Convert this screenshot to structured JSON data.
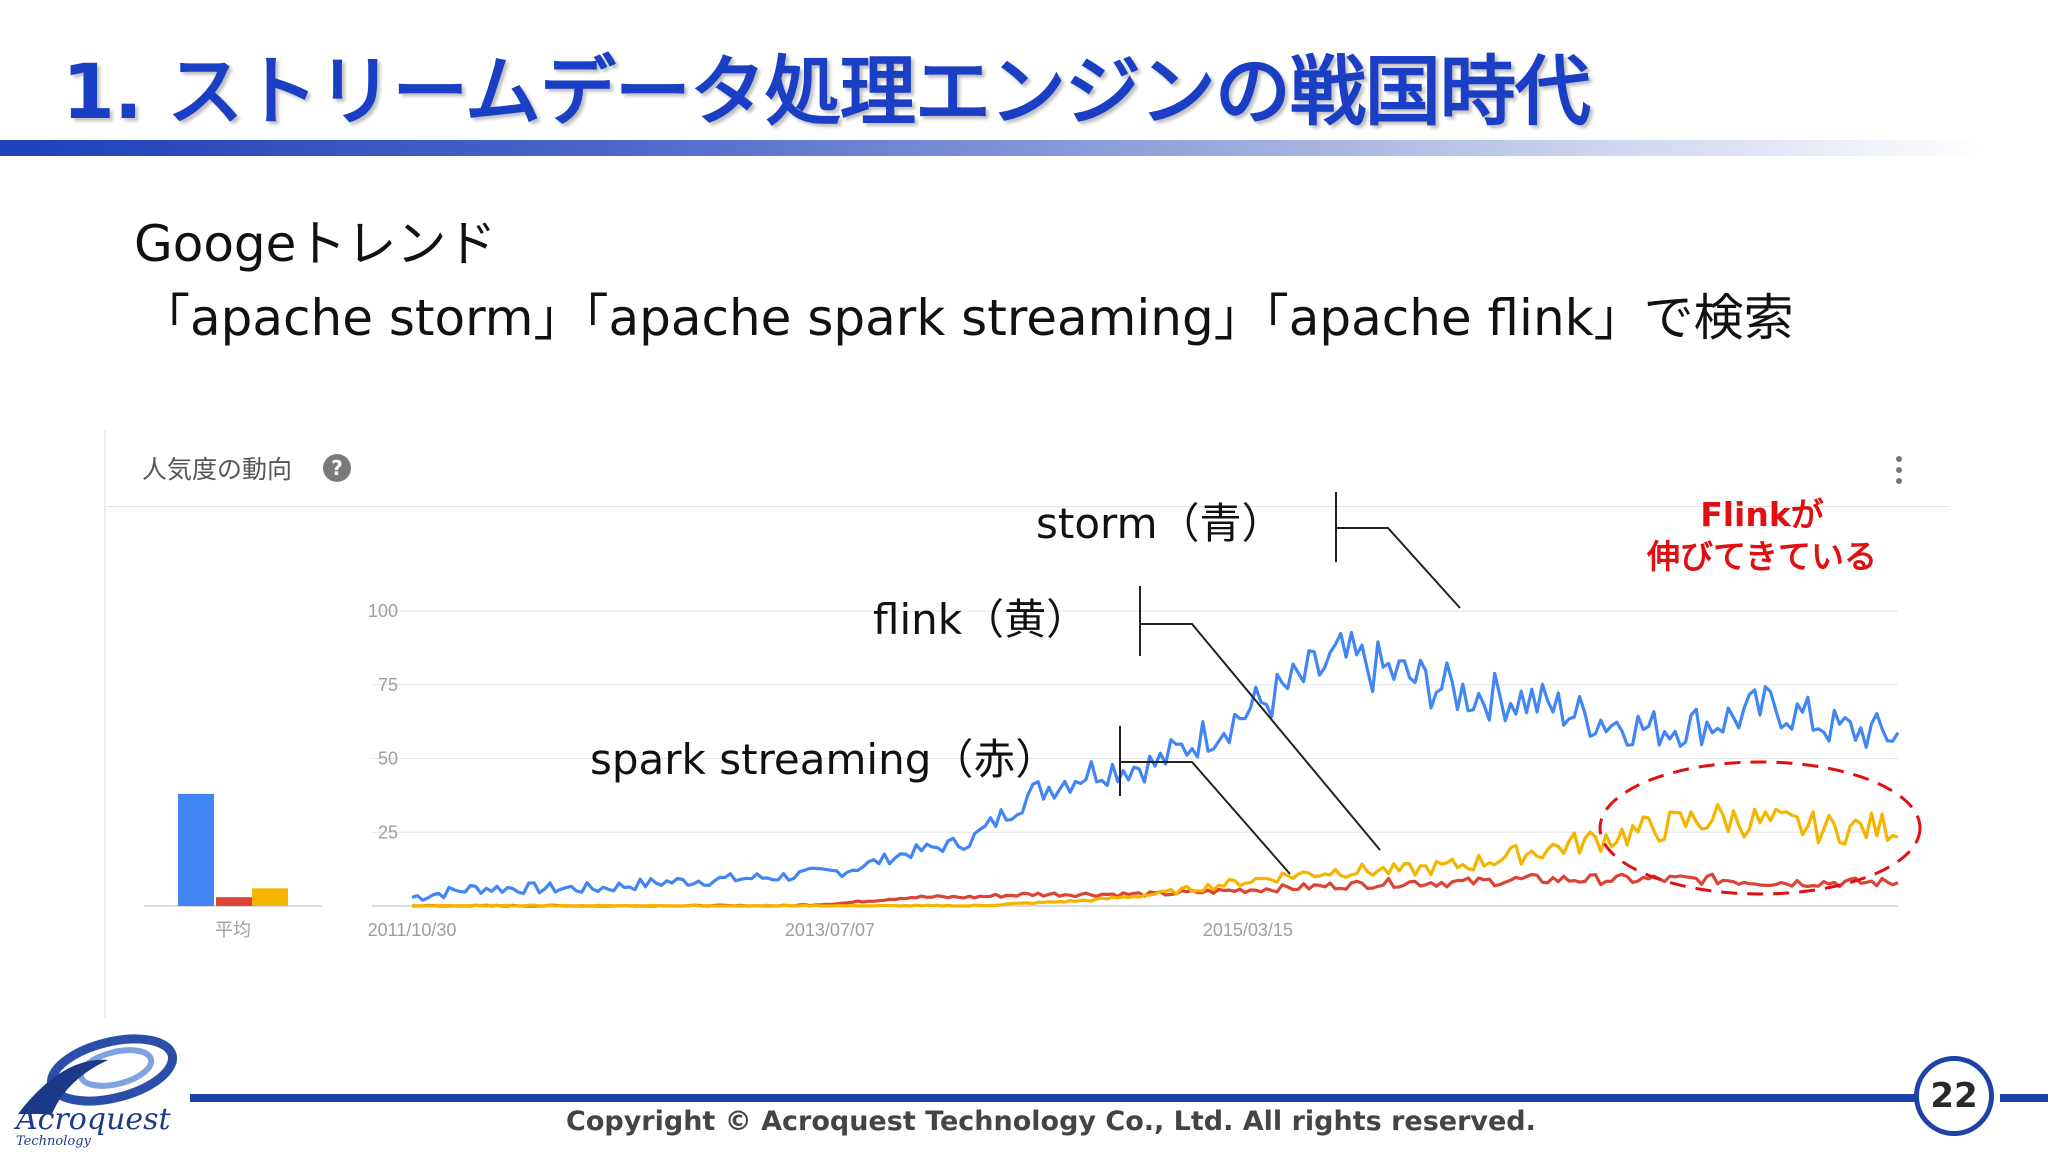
{
  "slide": {
    "title": "1. ストリームデータ処理エンジンの戦国時代",
    "subtitle_line1": "Googeトレンド",
    "subtitle_line2": "「apache storm」「apache spark streaming」「apache flink」で検索",
    "page_number": "22",
    "copyright": "Copyright © Acroquest Technology Co., Ltd. All rights reserved.",
    "logo_name": "Acroquest",
    "logo_sub": "Technology"
  },
  "panel": {
    "title": "人気度の動向",
    "help_icon": "help-circle-icon",
    "more_icon": "more-vert-icon"
  },
  "annotations": {
    "storm": "storm（青）",
    "flink": "flink（黄）",
    "spark": "spark streaming（赤）",
    "flink_note_1": "Flinkが",
    "flink_note_2": "伸びてきている"
  },
  "colors": {
    "storm": "#4285f4",
    "spark": "#db4437",
    "flink": "#f4b400",
    "title": "#1a3fc4",
    "highlight": "#e01010"
  },
  "chart_data": [
    {
      "type": "bar",
      "categories": [
        "平均"
      ],
      "series": [
        {
          "values": [
            38
          ]
        },
        {
          "values": [
            3
          ]
        },
        {
          "values": [
            6
          ]
        }
      ],
      "ylim": [
        0,
        100
      ]
    },
    {
      "type": "line",
      "x_ticks": [
        "2011/10/30",
        "2013/07/07",
        "2015/03/15"
      ],
      "y_ticks": [
        25,
        50,
        75,
        100
      ],
      "ylim": [
        0,
        100
      ],
      "x": [
        "2011/10",
        "2012/01",
        "2012/04",
        "2012/07",
        "2012/10",
        "2013/01",
        "2013/04",
        "2013/07",
        "2013/10",
        "2014/01",
        "2014/04",
        "2014/07",
        "2014/10",
        "2015/01",
        "2015/04",
        "2015/07",
        "2015/10",
        "2016/01",
        "2016/04",
        "2016/07",
        "2016/10",
        "2017/01",
        "2017/04",
        "2017/07",
        "2017/10"
      ],
      "series": [
        {
          "values": [
            3,
            6,
            6,
            6,
            8,
            9,
            10,
            12,
            18,
            22,
            38,
            46,
            48,
            60,
            72,
            84,
            78,
            72,
            70,
            64,
            60,
            62,
            68,
            60,
            58
          ]
        },
        {
          "values": [
            0,
            0,
            0,
            0,
            0,
            0,
            0,
            1,
            3,
            3,
            4,
            4,
            4,
            5,
            6,
            7,
            8,
            8,
            9,
            9,
            9,
            9,
            8,
            8,
            8
          ]
        },
        {
          "values": [
            0,
            0,
            0,
            0,
            0,
            0,
            0,
            0,
            0,
            0,
            1,
            2,
            4,
            7,
            10,
            12,
            12,
            14,
            18,
            22,
            26,
            30,
            28,
            26,
            27
          ]
        }
      ]
    }
  ]
}
